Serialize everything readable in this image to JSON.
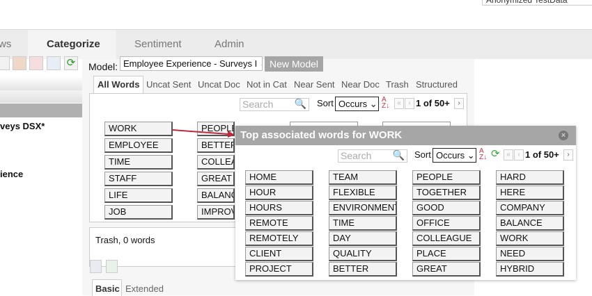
{
  "header": {
    "dataset": "Anonymized TestData"
  },
  "tabs": [
    {
      "label": "ws"
    },
    {
      "label": "Categorize"
    },
    {
      "label": "Sentiment"
    },
    {
      "label": "Admin"
    }
  ],
  "left": {
    "item1": "veys DSX*",
    "item2": "ience"
  },
  "model": {
    "label": "Model:",
    "value": "Employee Experience - Surveys I",
    "new_button": "New Model"
  },
  "word_tabs": [
    "All Words",
    "Uncat Sent",
    "Uncat Doc",
    "Not in Cat",
    "Near Sent",
    "Near Doc",
    "Trash",
    "Structured"
  ],
  "list": {
    "search_placeholder": "Search",
    "sort_label": "Sort",
    "sort_value": "Occurs",
    "page": "1 of 50+",
    "col1": [
      "WORK",
      "EMPLOYEE",
      "TIME",
      "STAFF",
      "LIFE",
      "JOB"
    ],
    "col2": [
      "PEOPLE",
      "BETTER",
      "COLLEAGUES",
      "GREAT",
      "BALANCE",
      "IMPROVE"
    ]
  },
  "trash": {
    "label": "Trash, 0 words"
  },
  "bottom_tabs": [
    "Basic",
    "Extended"
  ],
  "popup": {
    "title": "Top associated words for WORK",
    "search_placeholder": "Search",
    "sort_label": "Sort",
    "sort_value": "Occurs",
    "page": "1 of 50+",
    "columns": [
      [
        "HOME",
        "HOUR",
        "HOURS",
        "REMOTE",
        "REMOTELY",
        "CLIENT",
        "PROJECT"
      ],
      [
        "TEAM",
        "FLEXIBLE",
        "ENVIRONMENT",
        "TIME",
        "DAY",
        "QUALITY",
        "BETTER"
      ],
      [
        "PEOPLE",
        "TOGETHER",
        "GOOD",
        "OFFICE",
        "COLLEAGUE",
        "PLACE",
        "GREAT"
      ],
      [
        "HARD",
        "HERE",
        "COMPANY",
        "BALANCE",
        "WORK",
        "NEED",
        "HYBRID"
      ]
    ]
  },
  "colors": {
    "arrow": "#c0283a",
    "header": "#a6a6a6",
    "sort_icon_az": "#d0304a",
    "refresh": "#3aa83a"
  }
}
